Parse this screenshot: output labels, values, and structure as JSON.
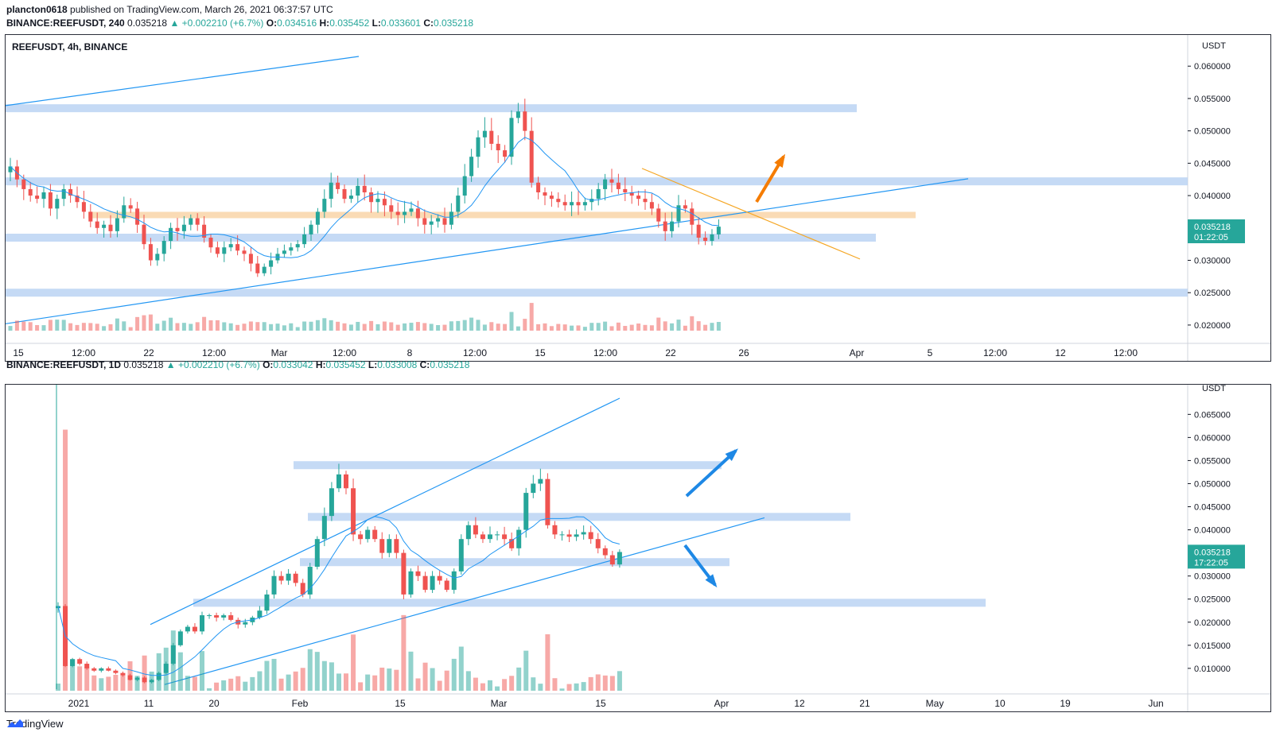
{
  "publish_line": {
    "author": "plancton0618",
    "text": "published on TradingView.com, March 26, 2021 06:37:57 UTC"
  },
  "chart_data": [
    {
      "type": "candlestick",
      "symbol_line": "BINANCE:REEFUSDT, 240",
      "panel_title": "REEFUSDT, 4h, BINANCE",
      "change": "▲ +0.002210 (+6.7%)",
      "ohlc": {
        "O": "0.034516",
        "H": "0.035452",
        "L": "0.033601",
        "C": "0.035218"
      },
      "currency": "USDT",
      "last_price": "0.035218",
      "countdown": "01:22:05",
      "y_ticks": [
        "0.060000",
        "0.055000",
        "0.050000",
        "0.045000",
        "0.040000",
        "0.030000",
        "0.025000",
        "0.020000"
      ],
      "ylim": [
        0.0195,
        0.0615
      ],
      "x_ticks": [
        "15",
        "12:00",
        "22",
        "12:00",
        "Mar",
        "12:00",
        "8",
        "12:00",
        "15",
        "12:00",
        "22",
        "26",
        "Apr",
        "5",
        "12:00",
        "12",
        "12:00"
      ],
      "close_path": [
        0.0445,
        0.0425,
        0.041,
        0.04,
        0.0395,
        0.0405,
        0.038,
        0.0395,
        0.041,
        0.04,
        0.039,
        0.0375,
        0.036,
        0.035,
        0.0355,
        0.0345,
        0.0365,
        0.0385,
        0.038,
        0.0355,
        0.0325,
        0.03,
        0.031,
        0.033,
        0.035,
        0.0345,
        0.0355,
        0.0365,
        0.0355,
        0.0335,
        0.032,
        0.031,
        0.032,
        0.0325,
        0.0315,
        0.031,
        0.0295,
        0.028,
        0.029,
        0.03,
        0.031,
        0.0315,
        0.032,
        0.0325,
        0.034,
        0.0355,
        0.0375,
        0.0395,
        0.042,
        0.041,
        0.0395,
        0.04,
        0.0415,
        0.0405,
        0.039,
        0.0395,
        0.0385,
        0.0375,
        0.037,
        0.0375,
        0.038,
        0.0365,
        0.0355,
        0.036,
        0.0365,
        0.0355,
        0.0375,
        0.04,
        0.043,
        0.046,
        0.049,
        0.05,
        0.048,
        0.047,
        0.046,
        0.052,
        0.053,
        0.05,
        0.042,
        0.0405,
        0.04,
        0.0395,
        0.039,
        0.0385,
        0.039,
        0.0385,
        0.039,
        0.0395,
        0.041,
        0.0425,
        0.042,
        0.041,
        0.0405,
        0.04,
        0.0395,
        0.039,
        0.038,
        0.036,
        0.0345,
        0.036,
        0.0385,
        0.038,
        0.0355,
        0.0335,
        0.033,
        0.034,
        0.0352
      ],
      "levels_blue": [
        0.0535,
        0.0422,
        0.0335,
        0.025
      ],
      "level_orange": 0.037
    },
    {
      "type": "candlestick",
      "symbol_line": "BINANCE:REEFUSDT, 1D",
      "last_value": "0.035218",
      "change": "▲ +0.002210 (+6.7%)",
      "ohlc": {
        "O": "0.033042",
        "H": "0.035452",
        "L": "0.033008",
        "C": "0.035218"
      },
      "currency": "USDT",
      "last_price": "0.035218",
      "countdown": "17:22:05",
      "y_ticks": [
        "0.065000",
        "0.060000",
        "0.055000",
        "0.050000",
        "0.045000",
        "0.040000",
        "0.030000",
        "0.025000",
        "0.020000",
        "0.015000",
        "0.010000"
      ],
      "ylim": [
        0.0055,
        0.0685
      ],
      "x_ticks": [
        "2021",
        "11",
        "20",
        "Feb",
        "15",
        "Mar",
        "15",
        "Apr",
        "12",
        "21",
        "May",
        "10",
        "19",
        "Jun"
      ],
      "daily_closes": [
        0.0235,
        0.0105,
        0.012,
        0.011,
        0.01,
        0.0095,
        0.01,
        0.0095,
        0.009,
        0.0085,
        0.0075,
        0.008,
        0.007,
        0.0075,
        0.009,
        0.011,
        0.015,
        0.018,
        0.019,
        0.018,
        0.0215,
        0.0215,
        0.021,
        0.0215,
        0.0205,
        0.0195,
        0.02,
        0.021,
        0.0225,
        0.026,
        0.03,
        0.029,
        0.0305,
        0.0285,
        0.026,
        0.032,
        0.038,
        0.043,
        0.049,
        0.052,
        0.049,
        0.039,
        0.038,
        0.04,
        0.038,
        0.035,
        0.038,
        0.035,
        0.026,
        0.031,
        0.03,
        0.027,
        0.03,
        0.029,
        0.027,
        0.031,
        0.038,
        0.041,
        0.039,
        0.038,
        0.039,
        0.039,
        0.038,
        0.036,
        0.04,
        0.048,
        0.05,
        0.051,
        0.041,
        0.039,
        0.039,
        0.0385,
        0.039,
        0.0395,
        0.038,
        0.036,
        0.0345,
        0.0325,
        0.0352
      ],
      "levels_blue": [
        0.054,
        0.0428,
        0.033,
        0.0242
      ]
    }
  ],
  "branding": {
    "label": "TradingView"
  }
}
